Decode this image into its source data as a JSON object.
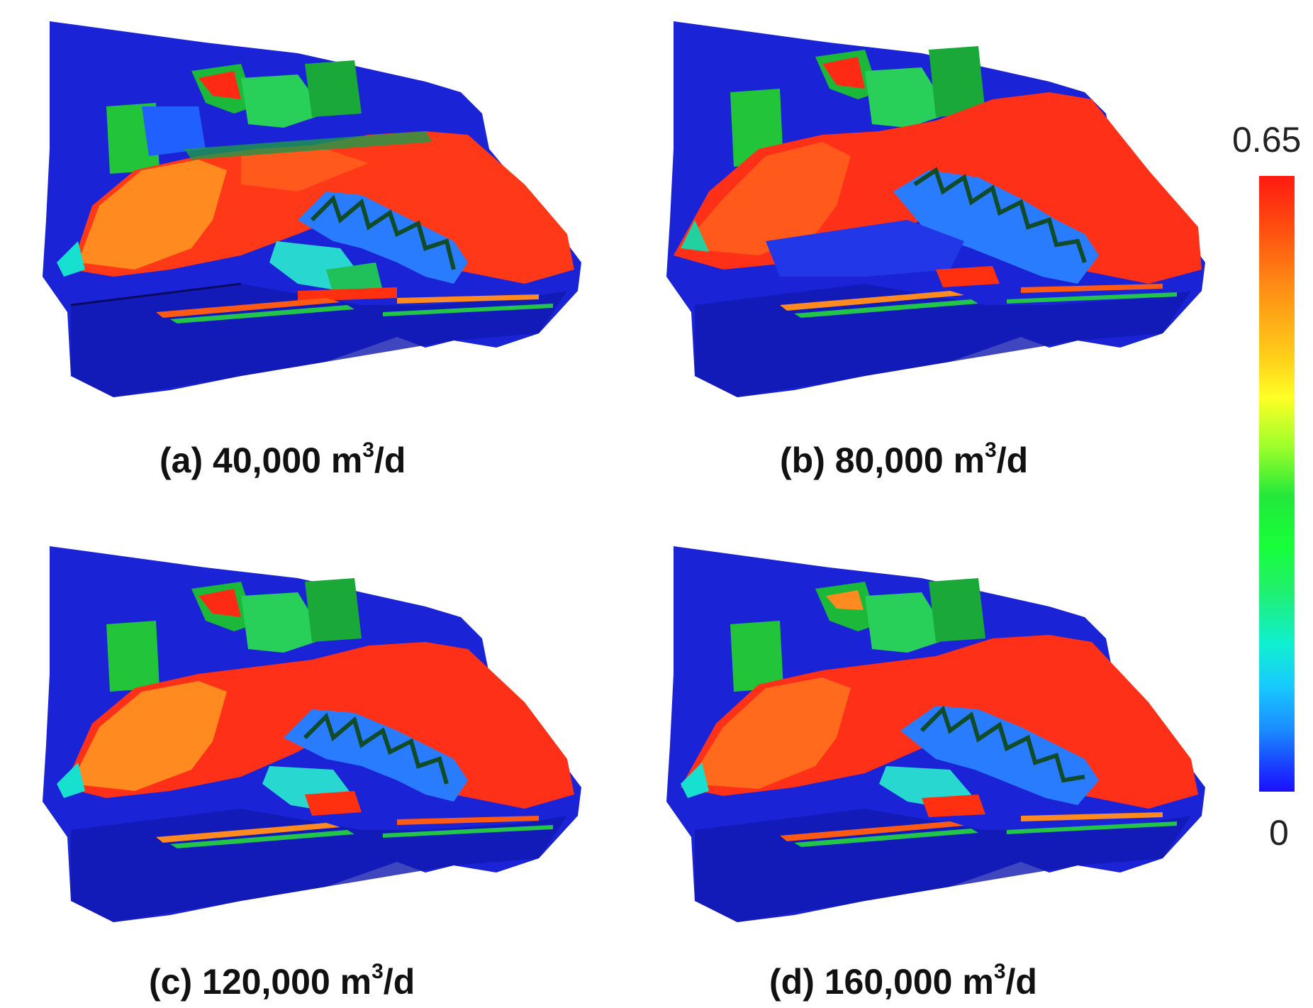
{
  "panels": [
    {
      "letter": "(a)",
      "value": "40,000 m",
      "sup": "3",
      "unit": "/d"
    },
    {
      "letter": "(b)",
      "value": "80,000 m",
      "sup": "3",
      "unit": "/d"
    },
    {
      "letter": "(c)",
      "value": "120,000 m",
      "sup": "3",
      "unit": "/d"
    },
    {
      "letter": "(d)",
      "value": "160,000 m",
      "sup": "3",
      "unit": "/d"
    }
  ],
  "colorbar": {
    "max_label": "0.65",
    "min_label": "0",
    "gradient_colors": [
      "#ff1a10",
      "#ff8c14",
      "#ffff26",
      "#22e83a",
      "#10f0d0",
      "#1a8cff",
      "#1a10ff"
    ]
  }
}
